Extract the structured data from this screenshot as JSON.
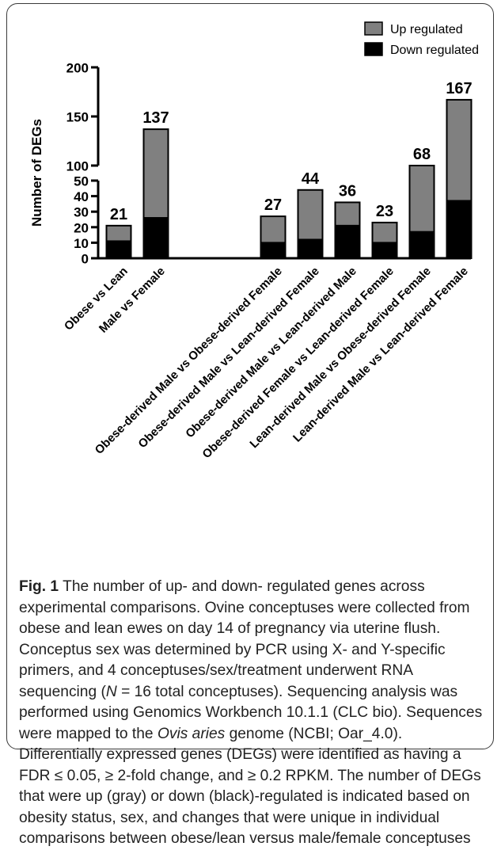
{
  "chart_data": {
    "type": "bar",
    "stacked": true,
    "ylabel": "Number of DEGs",
    "axis_break": true,
    "y_segments": [
      {
        "range": [
          0,
          50
        ],
        "ticks": [
          0,
          10,
          20,
          30,
          40,
          50
        ]
      },
      {
        "range": [
          100,
          200
        ],
        "ticks": [
          100,
          150,
          200
        ]
      }
    ],
    "categories": [
      "Obese vs Lean",
      "Male vs Female",
      "Obese-derived Male vs Obese-derived Female",
      "Obese-derived Male vs Lean-derived Female",
      "Obese-derived Male vs Lean-derived Male",
      "Obese-derived Female vs Lean-derived Female",
      "Lean-derived Male vs Obese-derived Female",
      "Lean-derived Male vs Lean-derived Female"
    ],
    "series": [
      {
        "name": "Down regulated",
        "color": "#000000",
        "values": [
          11,
          26,
          10,
          12,
          21,
          10,
          17,
          37
        ]
      },
      {
        "name": "Up regulated",
        "color": "#808080",
        "values": [
          10,
          111,
          17,
          32,
          15,
          13,
          51,
          130
        ]
      }
    ],
    "totals": [
      "21",
      "137",
      "27",
      "44",
      "36",
      "23",
      "68",
      "167"
    ],
    "legend_position": "top-right",
    "grid": false
  },
  "caption": {
    "label": "Fig. 1",
    "parts": [
      " The number of up- and down- regulated genes across experimental comparisons. Ovine conceptuses were collected from obese and lean ewes on day 14 of pregnancy via uterine flush. Conceptus sex was determined by PCR using X- and Y-specific primers, and 4 conceptuses/sex/treatment underwent RNA sequencing (",
      "N",
      " = 16 total conceptuses). Sequencing analysis was performed using Genomics Workbench 10.1.1 (CLC bio). Sequences were mapped to the ",
      "Ovis aries",
      " genome (NCBI; Oar_4.0). Differentially expressed genes (DEGs) were identified as having a FDR ≤ 0.05, ≥ 2-fold change, and ≥ 0.2 RPKM. The number of DEGs that were up (gray) or down (black)-regulated is indicated based on obesity status, sex, and changes that were unique in individual comparisons between obese/lean versus male/female conceptuses"
    ]
  }
}
